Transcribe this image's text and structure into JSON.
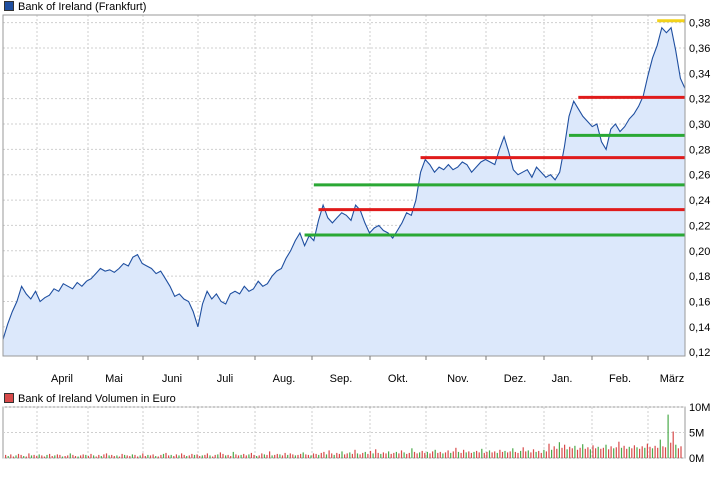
{
  "price_legend": "Bank of Ireland (Frankfurt)",
  "volume_legend": "Bank of Ireland Volumen in Euro",
  "colors": {
    "price_line": "#1f4fa0",
    "price_fill": "#dce8fb",
    "red_line": "#e01b1b",
    "green_line": "#2aa834",
    "yellow_line": "#f2d21a",
    "vol_red": "#d84a4a",
    "vol_green": "#4aaa4a",
    "grid": "#cfcfcf"
  },
  "chart_data": [
    {
      "type": "area",
      "x_tick_labels": [
        "April",
        "Mai",
        "Juni",
        "Juli",
        "Aug.",
        "Sep.",
        "Okt.",
        "Nov.",
        "Dez.",
        "Jan.",
        "Feb.",
        "März"
      ],
      "y_tick_labels": [
        "0,12",
        "0,14",
        "0,16",
        "0,18",
        "0,20",
        "0,22",
        "0,24",
        "0,26",
        "0,28",
        "0,30",
        "0,32",
        "0,34",
        "0,36",
        "0,38"
      ],
      "ylim": [
        0.117,
        0.386
      ],
      "grid": true,
      "series": [
        {
          "name": "",
          "points": [
            [
              0,
              0.13
            ],
            [
              0.5,
              0.142
            ],
            [
              1,
              0.152
            ],
            [
              1.5,
              0.16
            ],
            [
              2,
              0.172
            ],
            [
              2.5,
              0.166
            ],
            [
              3,
              0.162
            ],
            [
              3.5,
              0.168
            ],
            [
              4,
              0.16
            ],
            [
              4.5,
              0.163
            ],
            [
              5,
              0.165
            ],
            [
              5.5,
              0.17
            ],
            [
              6,
              0.168
            ],
            [
              6.5,
              0.174
            ],
            [
              7,
              0.172
            ],
            [
              7.5,
              0.17
            ],
            [
              8,
              0.175
            ],
            [
              8.5,
              0.172
            ],
            [
              9,
              0.176
            ],
            [
              9.5,
              0.178
            ],
            [
              10,
              0.182
            ],
            [
              10.5,
              0.186
            ],
            [
              11,
              0.184
            ],
            [
              11.5,
              0.185
            ],
            [
              12,
              0.183
            ],
            [
              12.5,
              0.186
            ],
            [
              13,
              0.19
            ],
            [
              13.5,
              0.188
            ],
            [
              14,
              0.195
            ],
            [
              14.5,
              0.197
            ],
            [
              15,
              0.19
            ],
            [
              15.5,
              0.188
            ],
            [
              16,
              0.186
            ],
            [
              16.5,
              0.182
            ],
            [
              17,
              0.184
            ],
            [
              17.5,
              0.178
            ],
            [
              18,
              0.172
            ],
            [
              18.5,
              0.164
            ],
            [
              19,
              0.166
            ],
            [
              19.5,
              0.162
            ],
            [
              20,
              0.16
            ],
            [
              20.5,
              0.152
            ],
            [
              21,
              0.14
            ],
            [
              21.5,
              0.158
            ],
            [
              22,
              0.168
            ],
            [
              22.5,
              0.162
            ],
            [
              23,
              0.166
            ],
            [
              23.5,
              0.16
            ],
            [
              24,
              0.158
            ],
            [
              24.5,
              0.166
            ],
            [
              25,
              0.168
            ],
            [
              25.5,
              0.166
            ],
            [
              26,
              0.172
            ],
            [
              26.5,
              0.168
            ],
            [
              27,
              0.17
            ],
            [
              27.5,
              0.176
            ],
            [
              28,
              0.172
            ],
            [
              28.5,
              0.174
            ],
            [
              29,
              0.18
            ],
            [
              29.5,
              0.184
            ],
            [
              30,
              0.186
            ],
            [
              30.5,
              0.194
            ],
            [
              31,
              0.2
            ],
            [
              31.5,
              0.208
            ],
            [
              32,
              0.214
            ],
            [
              32.5,
              0.204
            ],
            [
              33,
              0.212
            ],
            [
              33.5,
              0.208
            ],
            [
              34,
              0.224
            ],
            [
              34.5,
              0.236
            ],
            [
              35,
              0.226
            ],
            [
              35.5,
              0.222
            ],
            [
              36,
              0.226
            ],
            [
              36.5,
              0.23
            ],
            [
              37,
              0.228
            ],
            [
              37.5,
              0.224
            ],
            [
              38,
              0.236
            ],
            [
              38.5,
              0.232
            ],
            [
              39,
              0.222
            ],
            [
              39.5,
              0.214
            ],
            [
              40,
              0.218
            ],
            [
              40.5,
              0.22
            ],
            [
              41,
              0.216
            ],
            [
              41.5,
              0.214
            ],
            [
              42,
              0.21
            ],
            [
              42.5,
              0.216
            ],
            [
              43,
              0.222
            ],
            [
              43.5,
              0.23
            ],
            [
              44,
              0.228
            ],
            [
              44.5,
              0.24
            ],
            [
              45,
              0.262
            ],
            [
              45.5,
              0.272
            ],
            [
              46,
              0.268
            ],
            [
              46.5,
              0.262
            ],
            [
              47,
              0.266
            ],
            [
              47.5,
              0.264
            ],
            [
              48,
              0.268
            ],
            [
              48.5,
              0.264
            ],
            [
              49,
              0.266
            ],
            [
              49.5,
              0.27
            ],
            [
              50,
              0.268
            ],
            [
              50.5,
              0.262
            ],
            [
              51,
              0.266
            ],
            [
              51.5,
              0.27
            ],
            [
              52,
              0.272
            ],
            [
              52.5,
              0.27
            ],
            [
              53,
              0.268
            ],
            [
              53.5,
              0.28
            ],
            [
              54,
              0.29
            ],
            [
              54.5,
              0.278
            ],
            [
              55,
              0.264
            ],
            [
              55.5,
              0.26
            ],
            [
              56,
              0.262
            ],
            [
              56.5,
              0.264
            ],
            [
              57,
              0.258
            ],
            [
              57.5,
              0.266
            ],
            [
              58,
              0.262
            ],
            [
              58.5,
              0.258
            ],
            [
              59,
              0.26
            ],
            [
              59.5,
              0.256
            ],
            [
              60,
              0.262
            ],
            [
              60.5,
              0.282
            ],
            [
              61,
              0.306
            ],
            [
              61.5,
              0.318
            ],
            [
              62,
              0.312
            ],
            [
              62.5,
              0.306
            ],
            [
              63,
              0.302
            ],
            [
              63.5,
              0.298
            ],
            [
              64,
              0.3
            ],
            [
              64.5,
              0.286
            ],
            [
              65,
              0.28
            ],
            [
              65.5,
              0.296
            ],
            [
              66,
              0.3
            ],
            [
              66.5,
              0.294
            ],
            [
              67,
              0.298
            ],
            [
              67.5,
              0.304
            ],
            [
              68,
              0.308
            ],
            [
              68.5,
              0.314
            ],
            [
              69,
              0.322
            ],
            [
              69.5,
              0.338
            ],
            [
              70,
              0.352
            ],
            [
              70.5,
              0.362
            ],
            [
              71,
              0.376
            ],
            [
              71.5,
              0.372
            ],
            [
              72,
              0.376
            ],
            [
              72.5,
              0.358
            ],
            [
              73,
              0.336
            ],
            [
              73.5,
              0.328
            ]
          ]
        }
      ],
      "trend_lines": [
        {
          "color": "red",
          "x0": 34,
          "x1": 73.5,
          "y": 0.2325
        },
        {
          "color": "red",
          "x0": 45,
          "x1": 73.5,
          "y": 0.2735
        },
        {
          "color": "red",
          "x0": 62,
          "x1": 73.5,
          "y": 0.321
        },
        {
          "color": "green",
          "x0": 32.5,
          "x1": 73.5,
          "y": 0.2125
        },
        {
          "color": "green",
          "x0": 33.5,
          "x1": 73.5,
          "y": 0.252
        },
        {
          "color": "green",
          "x0": 61,
          "x1": 73.5,
          "y": 0.291
        },
        {
          "color": "yellow",
          "x0": 70.5,
          "x1": 73.5,
          "y": 0.3815
        }
      ]
    },
    {
      "type": "bar",
      "y_tick_labels": [
        "0M",
        "5M",
        "10M"
      ],
      "ylim": [
        0,
        10
      ],
      "series": [
        {
          "name": "",
          "values": [
            0.6,
            0.4,
            0.7,
            0.3,
            0.5,
            0.8,
            0.6,
            0.4,
            0.3,
            0.9,
            0.5,
            0.6,
            0.4,
            0.7,
            0.5,
            0.3,
            0.6,
            0.8,
            0.4,
            0.5,
            0.7,
            0.6,
            0.3,
            0.4,
            0.5,
            0.9,
            0.6,
            0.4,
            0.3,
            0.5,
            0.7,
            0.6,
            0.4,
            0.8,
            0.5,
            0.3,
            0.6,
            0.4,
            0.7,
            0.9,
            0.5,
            0.6,
            0.4,
            0.5,
            0.3,
            0.8,
            0.6,
            0.5,
            0.4,
            0.7,
            0.6,
            0.3,
            0.5,
            0.9,
            0.4,
            0.6,
            0.5,
            0.7,
            0.4,
            0.3,
            0.6,
            0.8,
            1.0,
            0.5,
            0.6,
            0.4,
            0.7,
            0.5,
            0.9,
            0.6,
            0.4,
            0.5,
            0.8,
            0.6,
            0.7,
            0.4,
            0.5,
            0.6,
            0.9,
            0.5,
            0.3,
            0.6,
            0.7,
            1.1,
            0.8,
            0.5,
            0.6,
            0.4,
            1.2,
            0.7,
            0.5,
            0.6,
            0.8,
            0.5,
            0.7,
            1.0,
            0.6,
            0.4,
            0.5,
            0.9,
            0.7,
            0.6,
            1.3,
            0.5,
            0.6,
            0.8,
            0.7,
            0.5,
            1.0,
            0.6,
            0.9,
            0.7,
            0.5,
            0.6,
            0.8,
            1.1,
            0.7,
            0.6,
            0.5,
            0.9,
            0.8,
            0.6,
            1.0,
            1.2,
            0.7,
            1.5,
            0.9,
            0.6,
            1.0,
            0.8,
            1.3,
            0.7,
            0.9,
            1.1,
            0.8,
            1.6,
            0.9,
            0.7,
            1.0,
            1.2,
            0.8,
            1.4,
            0.9,
            1.7,
            1.0,
            0.8,
            1.1,
            0.9,
            1.3,
            0.8,
            1.0,
            1.2,
            0.9,
            1.5,
            1.1,
            0.8,
            1.0,
            1.9,
            1.2,
            0.9,
            1.1,
            1.4,
            1.0,
            1.2,
            0.9,
            1.3,
            1.6,
            1.0,
            1.2,
            0.9,
            1.1,
            1.5,
            1.0,
            1.3,
            2.0,
            1.2,
            1.0,
            1.6,
            1.1,
            1.3,
            1.0,
            1.2,
            1.4,
            1.1,
            1.8,
            1.0,
            1.2,
            1.5,
            1.1,
            1.3,
            1.0,
            1.6,
            1.2,
            1.4,
            1.1,
            1.3,
            1.9,
            1.2,
            1.0,
            1.4,
            2.1,
            1.3,
            1.5,
            1.1,
            1.7,
            1.2,
            1.4,
            1.0,
            1.6,
            1.3,
            2.8,
            1.6,
            2.3,
            1.8,
            3.1,
            2.0,
            2.6,
            1.7,
            2.2,
            1.9,
            2.4,
            1.6,
            2.0,
            2.7,
            1.8,
            2.1,
            1.7,
            2.5,
            1.9,
            2.2,
            1.8,
            2.0,
            2.6,
            1.7,
            2.3,
            1.9,
            2.1,
            3.2,
            2.0,
            2.4,
            1.8,
            2.2,
            1.9,
            2.5,
            2.1,
            1.8,
            2.3,
            2.0,
            2.8,
            2.2,
            1.9,
            2.4,
            2.0,
            3.6,
            2.3,
            2.1,
            8.5,
            3.0,
            5.2,
            2.6,
            1.9,
            2.3
          ]
        }
      ]
    }
  ]
}
